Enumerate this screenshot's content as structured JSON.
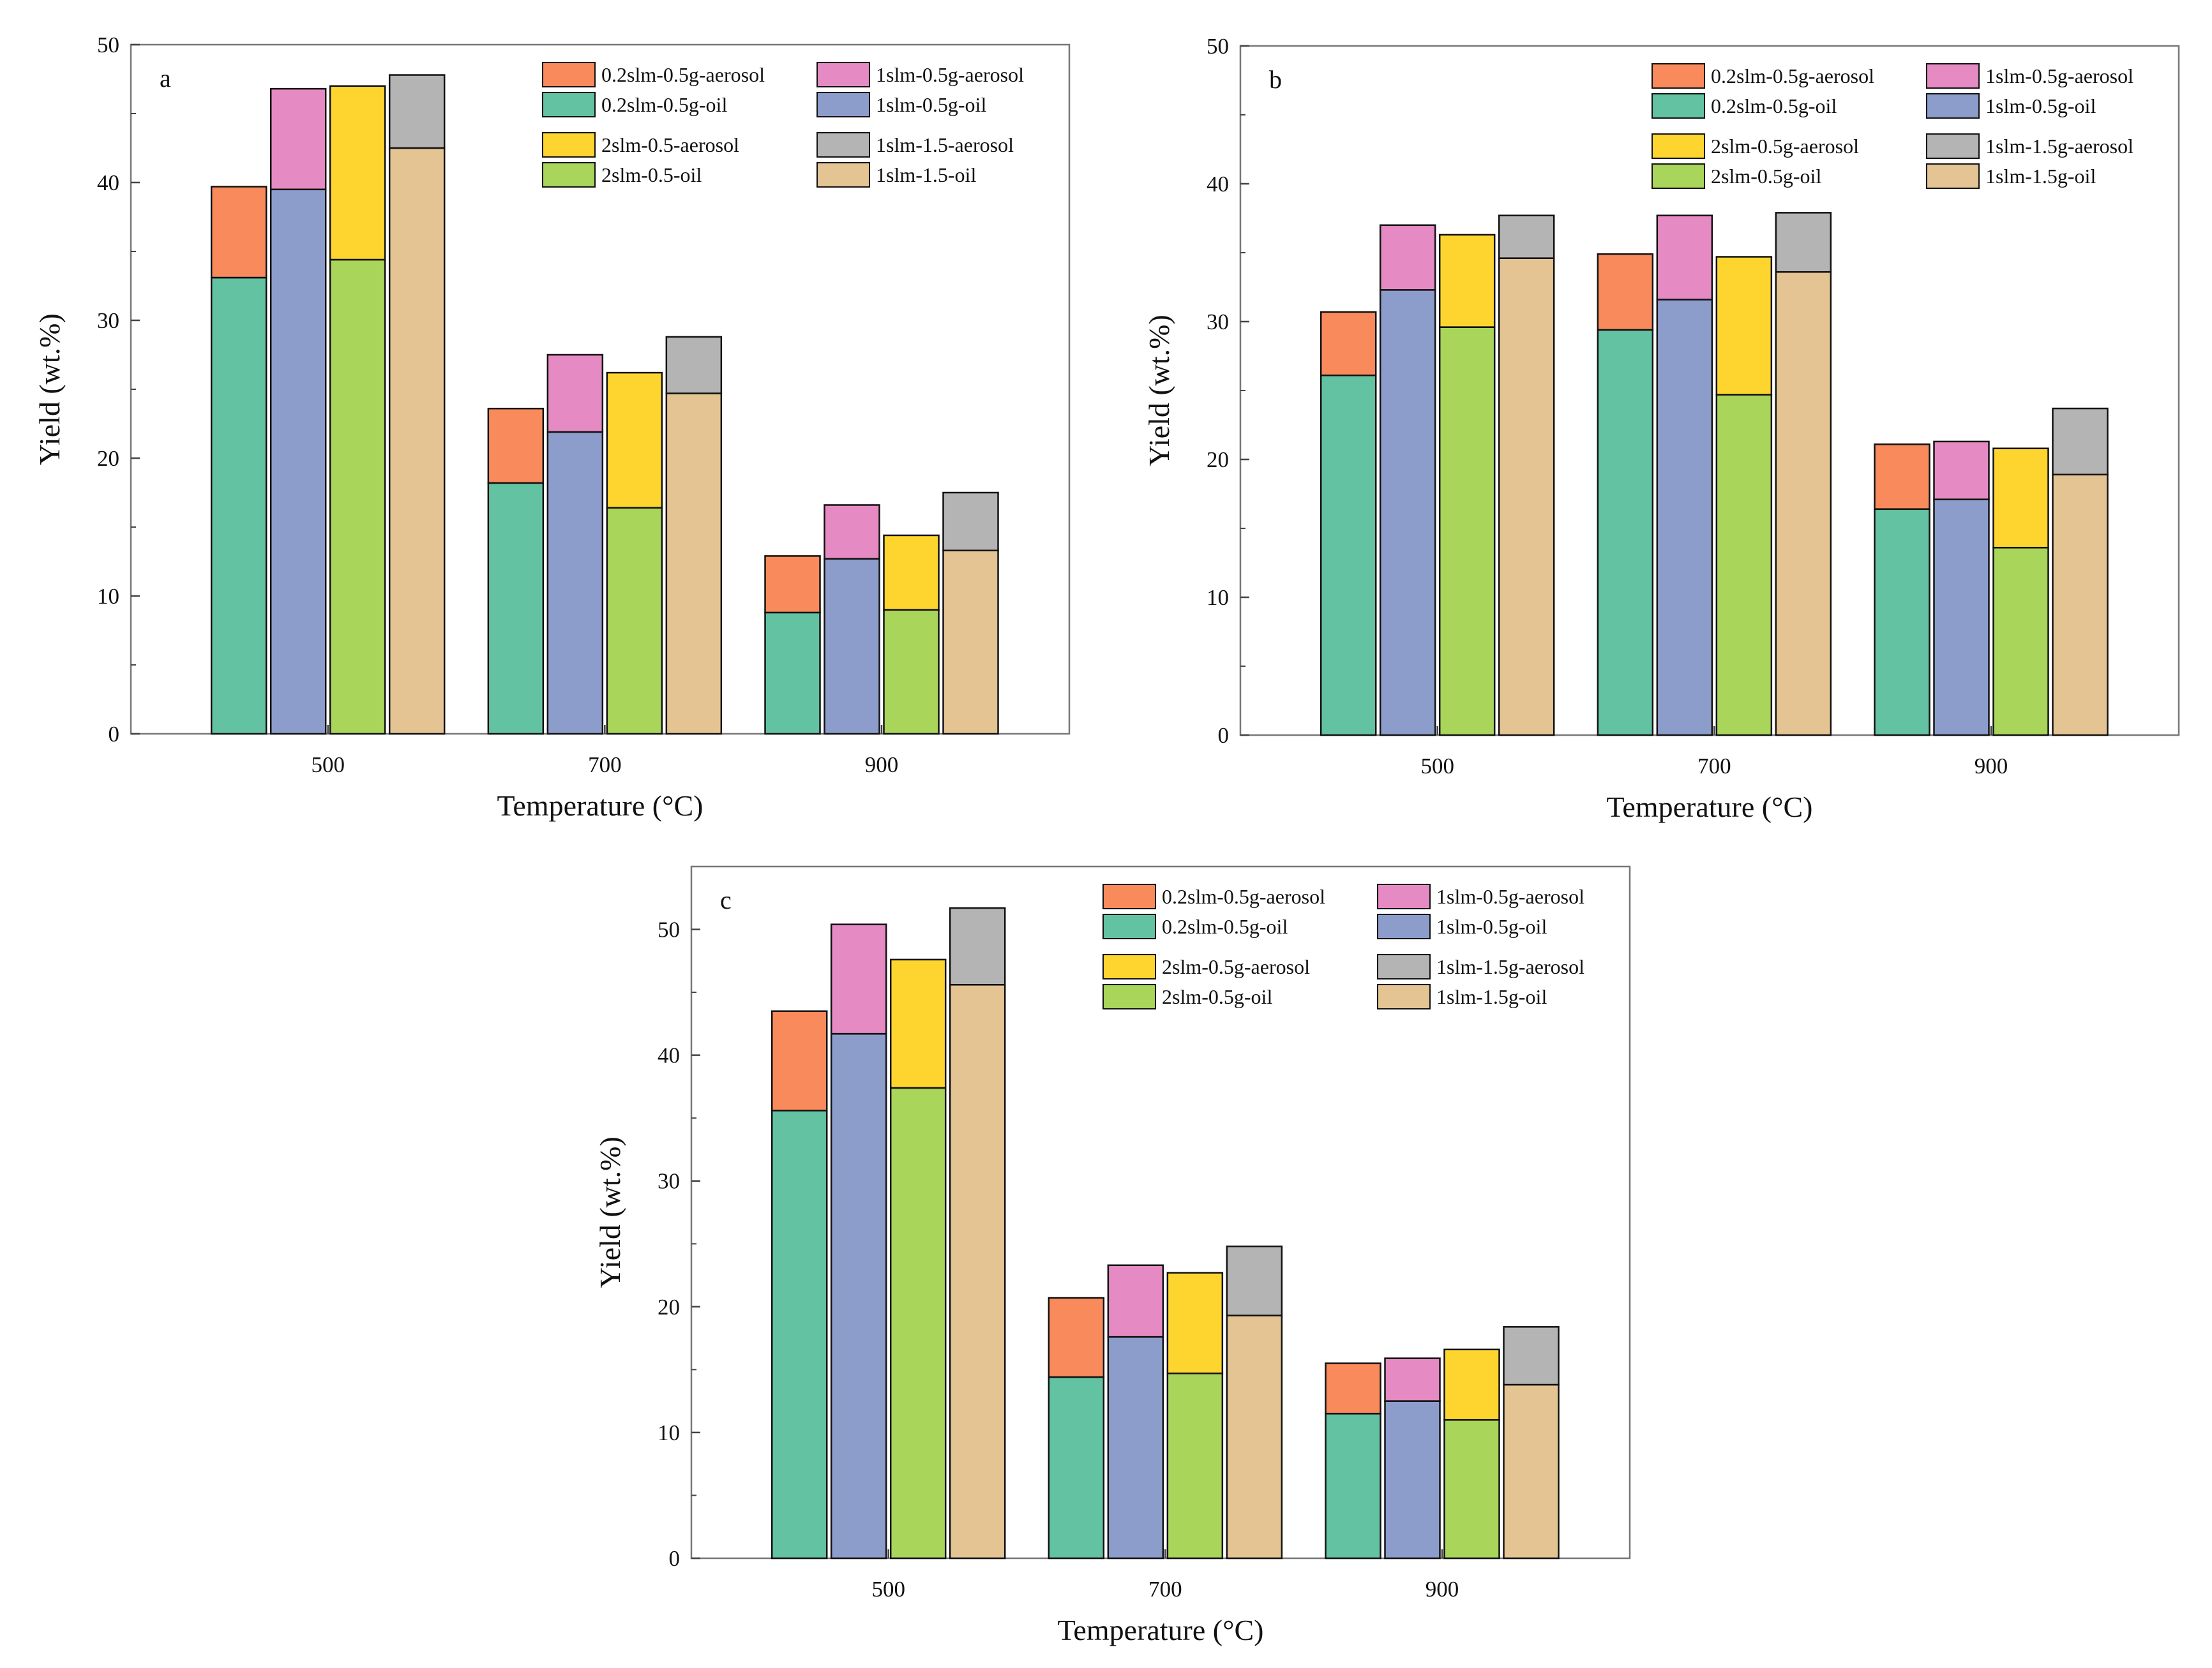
{
  "colors": {
    "0.2slm-0.5g-aerosol": "#F98A5B",
    "0.2slm-0.5g-oil": "#63C2A1",
    "1slm-0.5g-aerosol": "#E58AC2",
    "1slm-0.5g-oil": "#8D9DCB",
    "2slm-0.5g-aerosol": "#FED52E",
    "2slm-0.5g-oil": "#A8D55A",
    "1slm-1.5g-aerosol": "#B4B4B4",
    "1slm-1.5g-oil": "#E5C493"
  },
  "chart_data": [
    {
      "panel": "a",
      "type": "bar",
      "stacked": true,
      "categories": [
        "500",
        "700",
        "900"
      ],
      "xlabel": "Temperature (°C)",
      "ylabel": "Yield (wt.%)",
      "ylim": [
        0,
        50
      ],
      "yticks": [
        0,
        10,
        20,
        30,
        40,
        50
      ],
      "legend_position": "top-right",
      "groups": [
        {
          "oil_name": "0.2slm-0.5g-oil",
          "aerosol_name": "0.2slm-0.5g-aerosol",
          "oil_label": "0.2slm-0.5g-oil",
          "aerosol_label": "0.2slm-0.5g-aerosol",
          "oil": [
            33.1,
            18.2,
            8.8
          ],
          "total": [
            39.7,
            23.6,
            12.9
          ]
        },
        {
          "oil_name": "1slm-0.5g-oil",
          "aerosol_name": "1slm-0.5g-aerosol",
          "oil_label": "1slm-0.5g-oil",
          "aerosol_label": "1slm-0.5g-aerosol",
          "oil": [
            39.5,
            21.9,
            12.7
          ],
          "total": [
            46.8,
            27.5,
            16.6
          ]
        },
        {
          "oil_name": "2slm-0.5g-oil",
          "aerosol_name": "2slm-0.5g-aerosol",
          "oil_label": "2slm-0.5-oil",
          "aerosol_label": "2slm-0.5-aerosol",
          "oil": [
            34.4,
            16.4,
            9.0
          ],
          "total": [
            47.0,
            26.2,
            14.4
          ]
        },
        {
          "oil_name": "1slm-1.5g-oil",
          "aerosol_name": "1slm-1.5g-aerosol",
          "oil_label": "1slm-1.5-oil",
          "aerosol_label": "1slm-1.5-aerosol",
          "oil": [
            42.5,
            24.7,
            13.3
          ],
          "total": [
            47.8,
            28.8,
            17.5
          ]
        }
      ]
    },
    {
      "panel": "b",
      "type": "bar",
      "stacked": true,
      "categories": [
        "500",
        "700",
        "900"
      ],
      "xlabel": "Temperature (°C)",
      "ylabel": "Yield (wt.%)",
      "ylim": [
        0,
        50
      ],
      "yticks": [
        0,
        10,
        20,
        30,
        40,
        50
      ],
      "legend_position": "top-right",
      "groups": [
        {
          "oil_name": "0.2slm-0.5g-oil",
          "aerosol_name": "0.2slm-0.5g-aerosol",
          "oil_label": "0.2slm-0.5g-oil",
          "aerosol_label": "0.2slm-0.5g-aerosol",
          "oil": [
            26.1,
            29.4,
            16.4
          ],
          "total": [
            30.7,
            34.9,
            21.1
          ]
        },
        {
          "oil_name": "1slm-0.5g-oil",
          "aerosol_name": "1slm-0.5g-aerosol",
          "oil_label": "1slm-0.5g-oil",
          "aerosol_label": "1slm-0.5g-aerosol",
          "oil": [
            32.3,
            31.6,
            17.1
          ],
          "total": [
            37.0,
            37.7,
            21.3
          ]
        },
        {
          "oil_name": "2slm-0.5g-oil",
          "aerosol_name": "2slm-0.5g-aerosol",
          "oil_label": "2slm-0.5g-oil",
          "aerosol_label": "2slm-0.5g-aerosol",
          "oil": [
            29.6,
            24.7,
            13.6
          ],
          "total": [
            36.3,
            34.7,
            20.8
          ]
        },
        {
          "oil_name": "1slm-1.5g-oil",
          "aerosol_name": "1slm-1.5g-aerosol",
          "oil_label": "1slm-1.5g-oil",
          "aerosol_label": "1slm-1.5g-aerosol",
          "oil": [
            34.6,
            33.6,
            18.9
          ],
          "total": [
            37.7,
            37.9,
            23.7
          ]
        }
      ]
    },
    {
      "panel": "c",
      "type": "bar",
      "stacked": true,
      "categories": [
        "500",
        "700",
        "900"
      ],
      "xlabel": "Temperature (°C)",
      "ylabel": "Yield (wt.%)",
      "ylim": [
        0,
        55
      ],
      "yticks": [
        0,
        10,
        20,
        30,
        40,
        50
      ],
      "legend_position": "top-right",
      "groups": [
        {
          "oil_name": "0.2slm-0.5g-oil",
          "aerosol_name": "0.2slm-0.5g-aerosol",
          "oil_label": "0.2slm-0.5g-oil",
          "aerosol_label": "0.2slm-0.5g-aerosol",
          "oil": [
            35.6,
            14.4,
            11.5
          ],
          "total": [
            43.5,
            20.7,
            15.5
          ]
        },
        {
          "oil_name": "1slm-0.5g-oil",
          "aerosol_name": "1slm-0.5g-aerosol",
          "oil_label": "1slm-0.5g-oil",
          "aerosol_label": "1slm-0.5g-aerosol",
          "oil": [
            41.7,
            17.6,
            12.5
          ],
          "total": [
            50.4,
            23.3,
            15.9
          ]
        },
        {
          "oil_name": "2slm-0.5g-oil",
          "aerosol_name": "2slm-0.5g-aerosol",
          "oil_label": "2slm-0.5g-oil",
          "aerosol_label": "2slm-0.5g-aerosol",
          "oil": [
            37.4,
            14.7,
            11.0
          ],
          "total": [
            47.6,
            22.7,
            16.6
          ]
        },
        {
          "oil_name": "1slm-1.5g-oil",
          "aerosol_name": "1slm-1.5g-aerosol",
          "oil_label": "1slm-1.5g-oil",
          "aerosol_label": "1slm-1.5g-aerosol",
          "oil": [
            45.6,
            19.3,
            13.8
          ],
          "total": [
            51.7,
            24.8,
            18.4
          ]
        }
      ]
    }
  ]
}
